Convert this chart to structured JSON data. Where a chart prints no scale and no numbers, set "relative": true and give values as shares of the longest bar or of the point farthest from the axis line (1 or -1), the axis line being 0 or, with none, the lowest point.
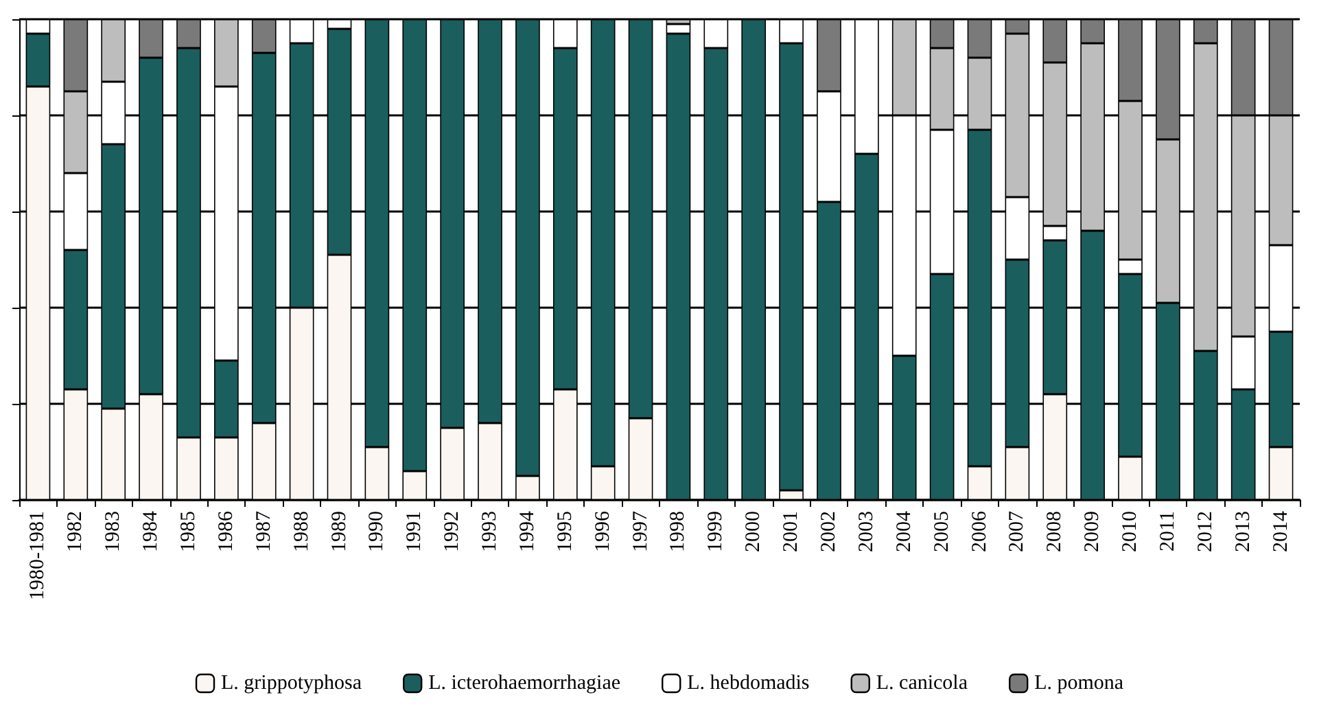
{
  "chart_data": {
    "type": "bar",
    "stacked": true,
    "relative": true,
    "grid": "y",
    "legend": "bottom",
    "categories": [
      "1980-1981",
      "1982",
      "1983",
      "1984",
      "1985",
      "1986",
      "1987",
      "1988",
      "1989",
      "1990",
      "1991",
      "1992",
      "1993",
      "1994",
      "1995",
      "1996",
      "1997",
      "1998",
      "1999",
      "2000",
      "2001",
      "2002",
      "2003",
      "2004",
      "2005",
      "2006",
      "2007",
      "2008",
      "2009",
      "2010",
      "2011",
      "2012",
      "2013",
      "2014"
    ],
    "series": [
      {
        "name": "L. grippotyphosa",
        "color": "#fbf6f1",
        "values": [
          0.86,
          0.23,
          0.19,
          0.22,
          0.13,
          0.13,
          0.16,
          0.4,
          0.51,
          0.11,
          0.06,
          0.15,
          0.16,
          0.05,
          0.23,
          0.07,
          0.17,
          0,
          0,
          0,
          0.02,
          0,
          0,
          0,
          0,
          0.07,
          0.11,
          0.22,
          0,
          0.09,
          0,
          0,
          0,
          0.11
        ]
      },
      {
        "name": "L. icterohaemorrhagiae",
        "color": "#1b5e5e",
        "values": [
          0.11,
          0.29,
          0.55,
          0.7,
          0.81,
          0.16,
          0.77,
          0.55,
          0.47,
          0.89,
          0.94,
          0.85,
          0.84,
          0.95,
          0.71,
          0.93,
          0.83,
          0.97,
          0.94,
          1,
          0.93,
          0.62,
          0.72,
          0.3,
          0.47,
          0.7,
          0.39,
          0.32,
          0.56,
          0.38,
          0.41,
          0.31,
          0.23,
          0.24
        ]
      },
      {
        "name": "L. hebdomadis",
        "color": "#ffffff",
        "values": [
          0.03,
          0.16,
          0.13,
          0,
          0,
          0.57,
          0,
          0.05,
          0.02,
          0,
          0,
          0,
          0,
          0,
          0.06,
          0,
          0,
          0.02,
          0.06,
          0,
          0.05,
          0.23,
          0.28,
          0.5,
          0.3,
          0,
          0.13,
          0.03,
          0,
          0.03,
          0,
          0,
          0.11,
          0.18
        ]
      },
      {
        "name": "L. canicola",
        "color": "#bdbdbd",
        "values": [
          0,
          0.17,
          0.13,
          0,
          0,
          0.14,
          0,
          0,
          0,
          0,
          0,
          0,
          0,
          0,
          0,
          0,
          0,
          0.01,
          0,
          0,
          0,
          0,
          0,
          0.2,
          0.17,
          0.15,
          0.34,
          0.34,
          0.39,
          0.33,
          0.34,
          0.64,
          0.46,
          0.27
        ]
      },
      {
        "name": "L. pomona",
        "color": "#7a7a7a",
        "values": [
          0,
          0.15,
          0,
          0.08,
          0.06,
          0,
          0.07,
          0,
          0,
          0,
          0,
          0,
          0,
          0,
          0,
          0,
          0,
          0,
          0,
          0,
          0,
          0.15,
          0,
          0,
          0.06,
          0.08,
          0.03,
          0.09,
          0.05,
          0.17,
          0.25,
          0.05,
          0.2,
          0.2
        ]
      }
    ]
  }
}
